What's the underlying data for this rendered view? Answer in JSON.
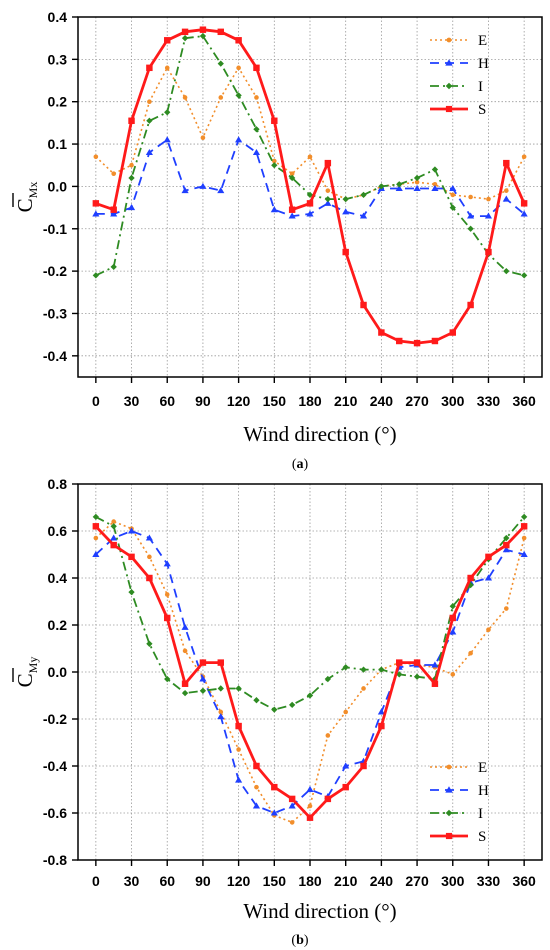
{
  "colors": {
    "E": "#f28e2b",
    "H": "#1f3fff",
    "I": "#2e8b22",
    "S": "#ff1a1a"
  },
  "chart_data": [
    {
      "type": "line",
      "caption": "(a)",
      "ylabel_main": "C",
      "ylabel_sub": "Mx",
      "xlabel": "Wind direction (°)",
      "xlim": [
        -15,
        375
      ],
      "ylim": [
        -0.45,
        0.4
      ],
      "xticks": [
        0,
        30,
        60,
        90,
        120,
        150,
        180,
        210,
        240,
        270,
        300,
        330,
        360
      ],
      "xtick_labels": [
        "0",
        "30",
        "60",
        "90",
        "120",
        "150",
        "180",
        "210",
        "240",
        "270",
        "300",
        "330",
        "360"
      ],
      "yticks": [
        0.4,
        0.3,
        0.2,
        0.1,
        0.0,
        -0.1,
        -0.2,
        -0.3,
        -0.4
      ],
      "ytick_labels": [
        "0.4",
        "0.3",
        "0.2",
        "0.1",
        "0.0",
        "-0.1",
        "-0.2",
        "-0.3",
        "-0.4"
      ],
      "grid": true,
      "legend_position": "top-right",
      "x": [
        0,
        15,
        30,
        45,
        60,
        75,
        90,
        105,
        120,
        135,
        150,
        165,
        180,
        195,
        210,
        225,
        240,
        255,
        270,
        285,
        300,
        315,
        330,
        345,
        360
      ],
      "series": [
        {
          "name": "E",
          "values": [
            0.07,
            0.03,
            0.05,
            0.2,
            0.28,
            0.21,
            0.115,
            0.21,
            0.28,
            0.21,
            0.06,
            0.03,
            0.07,
            -0.01,
            -0.03,
            -0.02,
            0.0,
            0.005,
            0.01,
            0.005,
            -0.02,
            -0.025,
            -0.03,
            -0.01,
            0.07
          ]
        },
        {
          "name": "H",
          "values": [
            -0.065,
            -0.065,
            -0.05,
            0.08,
            0.11,
            -0.01,
            0.0,
            -0.01,
            0.11,
            0.08,
            -0.055,
            -0.07,
            -0.065,
            -0.04,
            -0.06,
            -0.07,
            -0.005,
            -0.005,
            -0.005,
            -0.005,
            -0.005,
            -0.07,
            -0.07,
            -0.03,
            -0.065
          ]
        },
        {
          "name": "I",
          "values": [
            -0.21,
            -0.19,
            0.02,
            0.155,
            0.175,
            0.35,
            0.355,
            0.29,
            0.215,
            0.135,
            0.05,
            0.02,
            -0.02,
            -0.03,
            -0.03,
            -0.02,
            0.0,
            0.005,
            0.02,
            0.04,
            -0.05,
            -0.1,
            -0.16,
            -0.2,
            -0.21
          ]
        },
        {
          "name": "S",
          "values": [
            -0.04,
            -0.055,
            0.155,
            0.28,
            0.345,
            0.365,
            0.37,
            0.365,
            0.345,
            0.28,
            0.155,
            -0.055,
            -0.04,
            0.055,
            -0.155,
            -0.28,
            -0.345,
            -0.365,
            -0.37,
            -0.365,
            -0.345,
            -0.28,
            -0.155,
            0.055,
            -0.04
          ]
        }
      ]
    },
    {
      "type": "line",
      "caption": "(b)",
      "ylabel_main": "C",
      "ylabel_sub": "My",
      "xlabel": "Wind direction (°)",
      "xlim": [
        -15,
        375
      ],
      "ylim": [
        -0.8,
        0.8
      ],
      "xticks": [
        0,
        30,
        60,
        90,
        120,
        150,
        180,
        210,
        240,
        270,
        300,
        330,
        360
      ],
      "xtick_labels": [
        "0",
        "30",
        "60",
        "90",
        "120",
        "150",
        "180",
        "210",
        "240",
        "270",
        "300",
        "330",
        "360"
      ],
      "yticks": [
        0.8,
        0.6,
        0.4,
        0.2,
        0.0,
        -0.2,
        -0.4,
        -0.6,
        -0.8
      ],
      "ytick_labels": [
        "0.8",
        "0.6",
        "0.4",
        "0.2",
        "0.0",
        "-0.2",
        "-0.4",
        "-0.6",
        "-0.8"
      ],
      "grid": true,
      "legend_position": "bottom-right",
      "x": [
        0,
        15,
        30,
        45,
        60,
        75,
        90,
        105,
        120,
        135,
        150,
        165,
        180,
        195,
        210,
        225,
        240,
        255,
        270,
        285,
        300,
        315,
        330,
        345,
        360
      ],
      "series": [
        {
          "name": "E",
          "values": [
            0.57,
            0.64,
            0.61,
            0.49,
            0.33,
            0.09,
            -0.02,
            -0.17,
            -0.33,
            -0.49,
            -0.61,
            -0.64,
            -0.57,
            -0.27,
            -0.17,
            -0.07,
            0.01,
            0.04,
            0.03,
            0.02,
            -0.01,
            0.08,
            0.18,
            0.27,
            0.57
          ]
        },
        {
          "name": "H",
          "values": [
            0.5,
            0.57,
            0.6,
            0.57,
            0.46,
            0.19,
            -0.03,
            -0.19,
            -0.46,
            -0.57,
            -0.6,
            -0.57,
            -0.5,
            -0.53,
            -0.4,
            -0.38,
            -0.17,
            0.02,
            0.03,
            0.03,
            0.17,
            0.38,
            0.4,
            0.52,
            0.5
          ]
        },
        {
          "name": "I",
          "values": [
            0.66,
            0.62,
            0.34,
            0.12,
            -0.03,
            -0.09,
            -0.08,
            -0.07,
            -0.07,
            -0.12,
            -0.16,
            -0.14,
            -0.1,
            -0.03,
            0.02,
            0.01,
            0.01,
            -0.01,
            -0.02,
            -0.03,
            0.28,
            0.37,
            0.48,
            0.57,
            0.66
          ]
        },
        {
          "name": "S",
          "values": [
            0.62,
            0.54,
            0.49,
            0.4,
            0.23,
            -0.05,
            0.04,
            0.04,
            -0.23,
            -0.4,
            -0.49,
            -0.54,
            -0.62,
            -0.54,
            -0.49,
            -0.4,
            -0.23,
            0.04,
            0.04,
            -0.05,
            0.23,
            0.4,
            0.49,
            0.54,
            0.62
          ]
        }
      ]
    }
  ]
}
